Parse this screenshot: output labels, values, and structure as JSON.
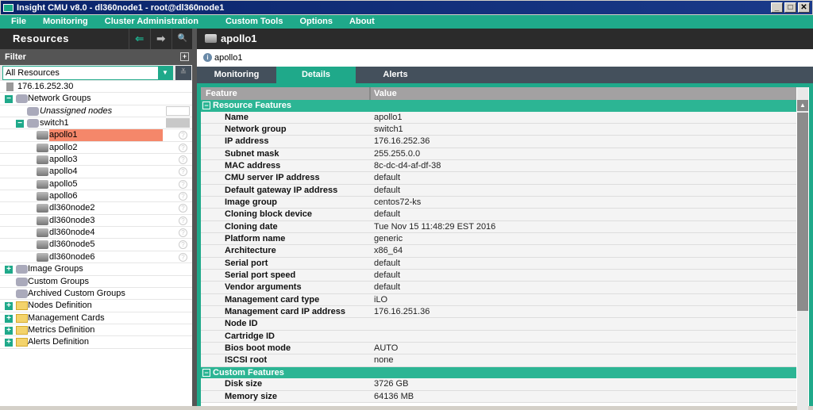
{
  "window": {
    "title": "Insight CMU v8.0 - dl360node1 - root@dl360node1",
    "minimize": "_",
    "maximize": "□",
    "close": "✕"
  },
  "menu": [
    "File",
    "Monitoring",
    "Cluster Administration",
    "Custom Tools",
    "Options",
    "About"
  ],
  "left": {
    "title": "Resources",
    "back_icon": "⇐",
    "forward_icon": "➡",
    "search_icon": "🔍",
    "filter_label": "Filter",
    "filter_value": "All Resources",
    "filter_arrow": "▼",
    "collapse": "≚",
    "tree": [
      {
        "label": "176.16.252.30",
        "level": 0,
        "icon": "server",
        "toggle": ""
      },
      {
        "label": "Network Groups",
        "level": 0,
        "icon": "network",
        "toggle": "−"
      },
      {
        "label": "Unassigned nodes",
        "level": 1,
        "icon": "network",
        "toggle": "",
        "italic": true,
        "box": "white"
      },
      {
        "label": "switch1",
        "level": 1,
        "icon": "network",
        "toggle": "−",
        "box": "gray"
      },
      {
        "label": "apollo1",
        "level": 2,
        "icon": "server",
        "toggle": "",
        "selected": true,
        "status": "?"
      },
      {
        "label": "apollo2",
        "level": 2,
        "icon": "server",
        "toggle": "",
        "status": "?"
      },
      {
        "label": "apollo3",
        "level": 2,
        "icon": "server",
        "toggle": "",
        "status": "?"
      },
      {
        "label": "apollo4",
        "level": 2,
        "icon": "server",
        "toggle": "",
        "status": "?"
      },
      {
        "label": "apollo5",
        "level": 2,
        "icon": "server",
        "toggle": "",
        "status": "?"
      },
      {
        "label": "apollo6",
        "level": 2,
        "icon": "server",
        "toggle": "",
        "status": "?"
      },
      {
        "label": "dl360node2",
        "level": 2,
        "icon": "server",
        "toggle": "",
        "status": "?"
      },
      {
        "label": "dl360node3",
        "level": 2,
        "icon": "server",
        "toggle": "",
        "status": "?"
      },
      {
        "label": "dl360node4",
        "level": 2,
        "icon": "server",
        "toggle": "",
        "status": "?"
      },
      {
        "label": "dl360node5",
        "level": 2,
        "icon": "server",
        "toggle": "",
        "status": "?"
      },
      {
        "label": "dl360node6",
        "level": 2,
        "icon": "server",
        "toggle": "",
        "status": "?"
      },
      {
        "label": "Image Groups",
        "level": 0,
        "icon": "network",
        "toggle": "+"
      },
      {
        "label": "Custom Groups",
        "level": 0,
        "icon": "network",
        "toggle": ""
      },
      {
        "label": "Archived Custom Groups",
        "level": 0,
        "icon": "network",
        "toggle": ""
      },
      {
        "label": "Nodes Definition",
        "level": 0,
        "icon": "folder",
        "toggle": "+"
      },
      {
        "label": "Management Cards",
        "level": 0,
        "icon": "folder",
        "toggle": "+"
      },
      {
        "label": "Metrics Definition",
        "level": 0,
        "icon": "folder",
        "toggle": "+"
      },
      {
        "label": "Alerts Definition",
        "level": 0,
        "icon": "folder",
        "toggle": "+"
      }
    ]
  },
  "right": {
    "title": "apollo1",
    "info": "apollo1",
    "info_icon": "i",
    "tabs": [
      {
        "label": "Monitoring"
      },
      {
        "label": "Details",
        "active": true
      },
      {
        "label": "Alerts"
      }
    ],
    "columns": [
      "Feature",
      "Value"
    ],
    "sections": [
      {
        "title": "Resource Features",
        "toggle": "−",
        "rows": [
          [
            "Name",
            "apollo1"
          ],
          [
            "Network group",
            "switch1"
          ],
          [
            "IP address",
            "176.16.252.36"
          ],
          [
            "Subnet mask",
            "255.255.0.0"
          ],
          [
            "MAC address",
            "8c-dc-d4-af-df-38"
          ],
          [
            "CMU server IP address",
            "default"
          ],
          [
            "Default gateway IP address",
            "default"
          ],
          [
            "Image group",
            "centos72-ks"
          ],
          [
            "Cloning block device",
            "default"
          ],
          [
            "Cloning date",
            "Tue Nov 15 11:48:29 EST 2016"
          ],
          [
            "Platform name",
            "generic"
          ],
          [
            "Architecture",
            "x86_64"
          ],
          [
            "Serial port",
            "default"
          ],
          [
            "Serial port speed",
            "default"
          ],
          [
            "Vendor arguments",
            "default"
          ],
          [
            "Management card type",
            "iLO"
          ],
          [
            "Management card IP address",
            "176.16.251.36"
          ],
          [
            "Node ID",
            ""
          ],
          [
            "Cartridge ID",
            ""
          ],
          [
            "Bios boot mode",
            "AUTO"
          ],
          [
            "ISCSI root",
            "none"
          ]
        ]
      },
      {
        "title": "Custom Features",
        "toggle": "−",
        "rows": [
          [
            "Disk size",
            "3726 GB"
          ],
          [
            "Memory size",
            "64136 MB"
          ]
        ]
      }
    ],
    "scroll_up": "▲"
  },
  "colors": {
    "accent": "#1fa98a",
    "header_dark": "#2b2b2b",
    "tab_bar": "#44505c",
    "selected": "#f5876a",
    "title_bar": "#0a246a"
  }
}
